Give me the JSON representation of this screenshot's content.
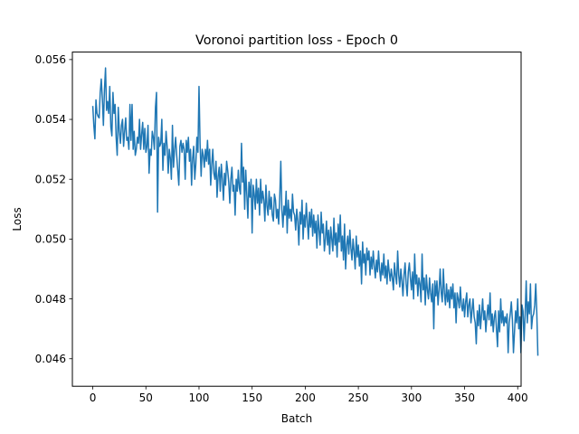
{
  "chart_data": {
    "type": "line",
    "title": "Voronoi partition loss - Epoch 0",
    "xlabel": "Batch",
    "ylabel": "Loss",
    "xlim": [
      -19.2,
      403.2
    ],
    "ylim": [
      0.04508,
      0.05625
    ],
    "x_ticks": [
      0,
      50,
      100,
      150,
      200,
      250,
      300,
      350,
      400
    ],
    "x_tick_labels": [
      "0",
      "50",
      "100",
      "150",
      "200",
      "250",
      "300",
      "350",
      "400"
    ],
    "y_ticks": [
      0.046,
      0.048,
      0.05,
      0.052,
      0.054,
      0.056
    ],
    "y_tick_labels": [
      "0.046",
      "0.048",
      "0.050",
      "0.052",
      "0.054",
      "0.056"
    ],
    "grid": false,
    "legend": "none",
    "series": [
      {
        "color": "#1f77b4",
        "x_start": 0,
        "x_step": 1,
        "values": [
          0.05445,
          0.0538,
          0.05335,
          0.05465,
          0.0542,
          0.0541,
          0.05405,
          0.0549,
          0.05535,
          0.0547,
          0.0538,
          0.055,
          0.05572,
          0.0543,
          0.0546,
          0.0542,
          0.0551,
          0.05375,
          0.05345,
          0.0549,
          0.0542,
          0.0545,
          0.0534,
          0.0528,
          0.0544,
          0.0536,
          0.0532,
          0.0538,
          0.054,
          0.0531,
          0.0536,
          0.05405,
          0.0533,
          0.0534,
          0.053,
          0.0545,
          0.0533,
          0.0545,
          0.053,
          0.0536,
          0.0528,
          0.053,
          0.0534,
          0.0532,
          0.054,
          0.053,
          0.0535,
          0.0539,
          0.053,
          0.0537,
          0.0529,
          0.0531,
          0.0538,
          0.0522,
          0.053,
          0.0528,
          0.0536,
          0.0534,
          0.053,
          0.0544,
          0.0549,
          0.0509,
          0.0534,
          0.0531,
          0.0532,
          0.054,
          0.0523,
          0.0532,
          0.0528,
          0.0536,
          0.0531,
          0.0522,
          0.053,
          0.0527,
          0.052,
          0.0538,
          0.0524,
          0.053,
          0.0534,
          0.0528,
          0.0523,
          0.0518,
          0.0531,
          0.0533,
          0.0529,
          0.0532,
          0.053,
          0.052,
          0.0533,
          0.0529,
          0.0534,
          0.0526,
          0.053,
          0.0518,
          0.0527,
          0.0531,
          0.052,
          0.0525,
          0.0534,
          0.0529,
          0.0551,
          0.0532,
          0.0521,
          0.053,
          0.0528,
          0.0524,
          0.053,
          0.0526,
          0.0533,
          0.0525,
          0.053,
          0.0518,
          0.0525,
          0.053,
          0.0522,
          0.052,
          0.0526,
          0.0514,
          0.0521,
          0.0524,
          0.0516,
          0.0525,
          0.052,
          0.0513,
          0.0522,
          0.0518,
          0.0526,
          0.0523,
          0.0519,
          0.0512,
          0.052,
          0.0524,
          0.0516,
          0.0518,
          0.0508,
          0.052,
          0.0516,
          0.0523,
          0.0517,
          0.0515,
          0.0532,
          0.0519,
          0.0524,
          0.051,
          0.0523,
          0.0515,
          0.0507,
          0.0519,
          0.0514,
          0.052,
          0.0502,
          0.0518,
          0.0515,
          0.051,
          0.052,
          0.0512,
          0.0517,
          0.0508,
          0.052,
          0.0512,
          0.0516,
          0.0513,
          0.0506,
          0.0518,
          0.0511,
          0.0508,
          0.0516,
          0.051,
          0.0514,
          0.0508,
          0.0506,
          0.0515,
          0.0513,
          0.0507,
          0.051,
          0.0505,
          0.0514,
          0.0526,
          0.051,
          0.0504,
          0.0511,
          0.0508,
          0.0516,
          0.0502,
          0.0513,
          0.0507,
          0.051,
          0.0506,
          0.0515,
          0.0509,
          0.0508,
          0.0503,
          0.051,
          0.0506,
          0.0498,
          0.0509,
          0.0505,
          0.0513,
          0.05,
          0.0508,
          0.0504,
          0.0512,
          0.0506,
          0.05,
          0.0509,
          0.0504,
          0.051,
          0.0501,
          0.0508,
          0.0502,
          0.0506,
          0.0497,
          0.0508,
          0.0503,
          0.0498,
          0.0509,
          0.0502,
          0.0505,
          0.0496,
          0.05,
          0.0506,
          0.0498,
          0.0503,
          0.0495,
          0.0504,
          0.05,
          0.0496,
          0.0507,
          0.0498,
          0.0502,
          0.0494,
          0.0505,
          0.0499,
          0.0508,
          0.0496,
          0.0501,
          0.0493,
          0.0505,
          0.049,
          0.0498,
          0.0501,
          0.0495,
          0.0503,
          0.0497,
          0.0493,
          0.05,
          0.0496,
          0.049,
          0.0501,
          0.0494,
          0.0498,
          0.0491,
          0.0496,
          0.0485,
          0.0499,
          0.0492,
          0.0495,
          0.0488,
          0.0497,
          0.0493,
          0.0496,
          0.0488,
          0.0494,
          0.049,
          0.0496,
          0.0491,
          0.0487,
          0.0493,
          0.0489,
          0.0496,
          0.049,
          0.0486,
          0.0492,
          0.0488,
          0.0495,
          0.0487,
          0.0491,
          0.0485,
          0.0493,
          0.0489,
          0.0486,
          0.049,
          0.0487,
          0.0483,
          0.0492,
          0.0488,
          0.0485,
          0.0496,
          0.0488,
          0.0484,
          0.049,
          0.0486,
          0.0481,
          0.0488,
          0.0492,
          0.0485,
          0.0481,
          0.0489,
          0.0492,
          0.0487,
          0.0483,
          0.0489,
          0.048,
          0.0495,
          0.0485,
          0.0488,
          0.0481,
          0.0487,
          0.0485,
          0.0479,
          0.0495,
          0.0483,
          0.0487,
          0.0478,
          0.0488,
          0.0483,
          0.048,
          0.0487,
          0.0482,
          0.0479,
          0.0485,
          0.047,
          0.0486,
          0.0481,
          0.0486,
          0.0478,
          0.0483,
          0.049,
          0.0482,
          0.0479,
          0.049,
          0.0482,
          0.0478,
          0.0485,
          0.0479,
          0.0483,
          0.0477,
          0.0484,
          0.048,
          0.0485,
          0.0477,
          0.0482,
          0.0472,
          0.0482,
          0.048,
          0.0477,
          0.0484,
          0.0478,
          0.0476,
          0.048,
          0.0474,
          0.0479,
          0.0482,
          0.0474,
          0.0478,
          0.048,
          0.0472,
          0.0476,
          0.048,
          0.0474,
          0.0472,
          0.0465,
          0.0476,
          0.0471,
          0.0478,
          0.047,
          0.0475,
          0.048,
          0.0473,
          0.0476,
          0.0469,
          0.0474,
          0.0478,
          0.0473,
          0.0482,
          0.0471,
          0.0475,
          0.0469,
          0.0474,
          0.0476,
          0.047,
          0.0464,
          0.0476,
          0.0469,
          0.048,
          0.0472,
          0.0476,
          0.0471,
          0.0474,
          0.0472,
          0.0475,
          0.0462,
          0.0472,
          0.0475,
          0.0479,
          0.0473,
          0.0462,
          0.0469,
          0.0476,
          0.0472,
          0.048,
          0.047,
          0.0474,
          0.0462,
          0.0478,
          0.0476,
          0.0466,
          0.0475,
          0.0486,
          0.0472,
          0.0479,
          0.0475,
          0.0485,
          0.047,
          0.0474,
          0.0475,
          0.0478,
          0.0485,
          0.0475,
          0.0461
        ]
      }
    ]
  }
}
